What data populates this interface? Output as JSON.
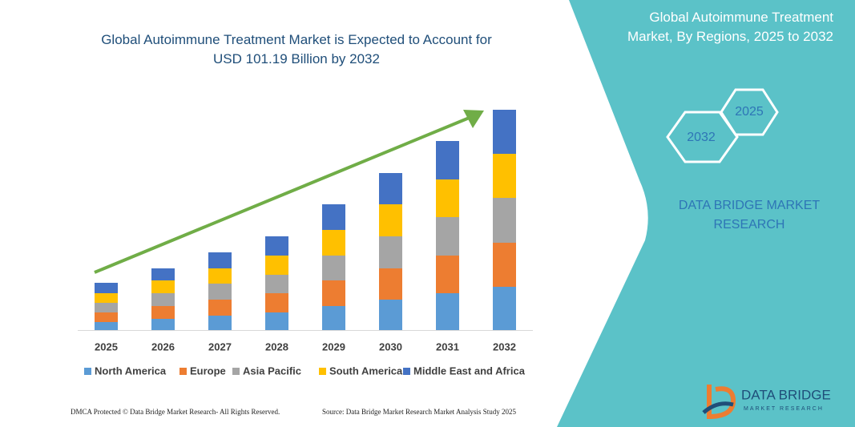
{
  "chart_data": {
    "type": "stacked_bar",
    "title": "Global Autoimmune Treatment Market is Expected to Account for USD 101.19 Billion by 2032",
    "categories": [
      "2025",
      "2026",
      "2027",
      "2028",
      "2029",
      "2030",
      "2031",
      "2032"
    ],
    "series": [
      {
        "name": "North America",
        "color": "#5b9bd5",
        "values": [
          10,
          14,
          18,
          22,
          30,
          38,
          46,
          54
        ]
      },
      {
        "name": "Europe",
        "color": "#ed7d31",
        "values": [
          12,
          16,
          20,
          24,
          32,
          39,
          47,
          55
        ]
      },
      {
        "name": "Asia Pacific",
        "color": "#a5a5a5",
        "values": [
          12,
          16,
          20,
          23,
          31,
          40,
          48,
          56
        ]
      },
      {
        "name": "South America",
        "color": "#ffc000",
        "values": [
          12,
          16,
          19,
          24,
          32,
          40,
          47,
          55
        ]
      },
      {
        "name": "Middle East and Africa",
        "color": "#4472c4",
        "values": [
          13,
          15,
          20,
          24,
          32,
          39,
          48,
          55
        ]
      }
    ],
    "ylim": [
      0,
      280
    ],
    "grid": false,
    "legend": "bottom"
  },
  "panel": {
    "title": "Global Autoimmune Treatment Market, By Regions, 2025 to 2032",
    "hex_start": "2025",
    "hex_end": "2032",
    "brand": "DATA BRIDGE MARKET RESEARCH",
    "logo_name": "DATA BRIDGE",
    "logo_sub": "MARKET RESEARCH"
  },
  "footer": {
    "left": "DMCA Protected © Data Bridge Market Research- All Rights Reserved.",
    "right": "Source: Data Bridge Market Research Market Analysis Study 2025"
  }
}
